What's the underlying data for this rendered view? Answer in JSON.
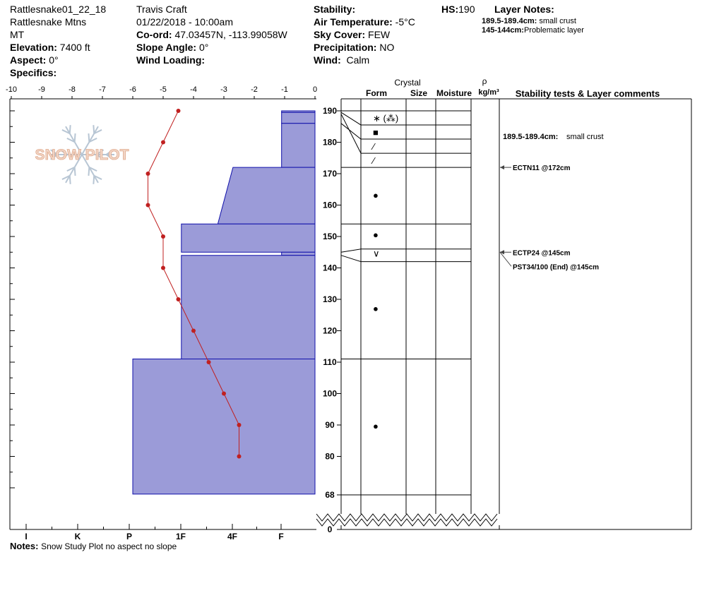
{
  "header": {
    "col1": [
      "Rattlesnake01_22_18",
      "Rattlesnake Mtns",
      "MT"
    ],
    "elevation_label": "Elevation:",
    "elevation": "7400 ft",
    "aspect_label": "Aspect:",
    "aspect": "0°",
    "specifics_label": "Specifics:",
    "observer": "Travis  Craft",
    "datetime": "01/22/2018 - 10:00am",
    "coord_label": "Co-ord:",
    "coord": "47.03457N, -113.99058W",
    "slope_label": "Slope Angle:",
    "slope": "0°",
    "wind_loading_label": "Wind Loading:",
    "stability_label": "Stability:",
    "air_temp_label": "Air Temperature:",
    "air_temp": "-5°C",
    "sky_label": "Sky Cover:",
    "sky": "FEW",
    "precip_label": "Precipitation:",
    "precip": "NO",
    "wind_label": "Wind:",
    "wind": "Calm",
    "hs_label": "HS:",
    "hs": "190",
    "layer_notes_label": "Layer Notes:",
    "layer_notes": [
      {
        "range": "189.5-189.4cm:",
        "text": "small crust"
      },
      {
        "range": "145-144cm:",
        "text": "Problematic layer"
      }
    ]
  },
  "logo": {
    "text": "SNOW PILOT"
  },
  "notes": {
    "label": "Notes:",
    "text": "Snow Study Plot no aspect no slope"
  },
  "columns": {
    "crystal": "Crystal",
    "form": "Form",
    "size": "Size",
    "moisture": "Moisture",
    "rho": "ρ",
    "density_unit": "kg/m³",
    "comments": "Stability tests & Layer comments"
  },
  "layer_comment": {
    "range": "189.5-189.4cm:",
    "text": "small crust"
  },
  "stability_tests": [
    {
      "label": "ECTN11 @172cm",
      "depth": 172
    },
    {
      "label": "ECTP24 @145cm",
      "depth": 145
    },
    {
      "label": "PST34/100 (End) @145cm",
      "depth": 145
    }
  ],
  "forms": [
    {
      "depth": 187.5,
      "symbol": "∗ (⁂)"
    },
    {
      "depth": 183,
      "symbol": "■"
    },
    {
      "depth": 178.5,
      "symbol": "⁄"
    },
    {
      "depth": 174,
      "symbol": "⁄"
    },
    {
      "depth": 163,
      "symbol": "●"
    },
    {
      "depth": 150.5,
      "symbol": "●"
    },
    {
      "depth": 144.5,
      "symbol": "∨"
    },
    {
      "depth": 127,
      "symbol": "●"
    },
    {
      "depth": 89.5,
      "symbol": "●"
    }
  ],
  "chart_data": {
    "type": "snow-profile",
    "temperature_axis": {
      "ticks": [
        "-10",
        "-9",
        "-8",
        "-7",
        "-6",
        "-5",
        "-4",
        "-3",
        "-2",
        "-1",
        "0"
      ],
      "range": [
        -10,
        0
      ]
    },
    "hardness_axis": {
      "ticks": [
        "I",
        "K",
        "P",
        "1F",
        "4F",
        "F"
      ]
    },
    "depth_ticks": [
      "190",
      "180",
      "170",
      "160",
      "150",
      "140",
      "130",
      "120",
      "110",
      "100",
      "90",
      "80",
      "68",
      "0"
    ],
    "temperature_profile": {
      "depth": [
        190,
        180,
        170,
        160,
        150,
        140,
        130,
        120,
        110,
        100,
        90,
        80
      ],
      "temp": [
        -4.5,
        -5.0,
        -5.5,
        -5.5,
        -5.0,
        -5.0,
        -4.5,
        -4.0,
        -3.5,
        -3.0,
        -2.5,
        -2.5
      ]
    },
    "layers": [
      {
        "top": 190,
        "bottom": 189.5,
        "hardness": -1.1
      },
      {
        "top": 189.5,
        "bottom": 186,
        "hardness": -1.1
      },
      {
        "top": 186,
        "bottom": 172,
        "hardness": -1.1
      },
      {
        "top": 172,
        "bottom": 154,
        "hardness": -2.7,
        "top_hardness": -3.2
      },
      {
        "top": 154,
        "bottom": 145,
        "hardness": -4.4
      },
      {
        "top": 145,
        "bottom": 144,
        "hardness": -1.1
      },
      {
        "top": 144,
        "bottom": 111,
        "hardness": -4.4
      },
      {
        "top": 111,
        "bottom": 68,
        "hardness": -6.0
      }
    ],
    "grid_depths": [
      190,
      185.5,
      181,
      176.5,
      172,
      154,
      146,
      142,
      111,
      68
    ]
  }
}
